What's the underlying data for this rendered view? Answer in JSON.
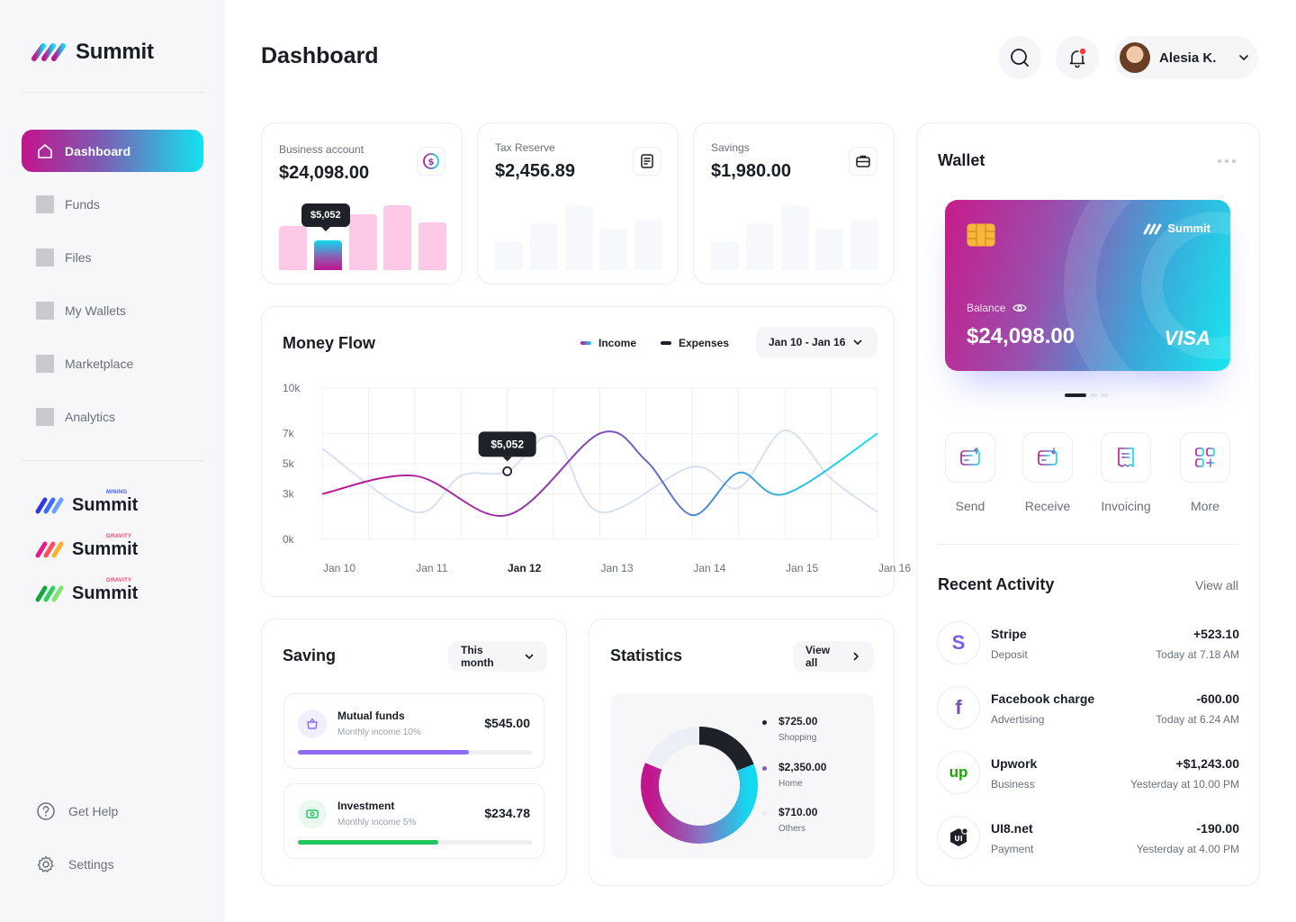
{
  "sidebar": {
    "logo": "Summit",
    "items": [
      {
        "label": "Dashboard"
      },
      {
        "label": "Funds"
      },
      {
        "label": "Files"
      },
      {
        "label": "My Wallets"
      },
      {
        "label": "Marketplace"
      },
      {
        "label": "Analytics"
      }
    ],
    "brands": [
      {
        "name": "Summit",
        "tag": "MINING",
        "tag_color": "#3b5bff"
      },
      {
        "name": "Summit",
        "tag": "GRAVITY",
        "tag_color": "#ff3d6e"
      },
      {
        "name": "Summit",
        "tag": "GRAVITY",
        "tag_color": "#ff3d6e"
      }
    ],
    "help": "Get Help",
    "settings": "Settings"
  },
  "header": {
    "title": "Dashboard",
    "user_name": "Alesia K."
  },
  "accounts": [
    {
      "label": "Business account",
      "value": "$24,098.00",
      "bars": [
        0.68,
        0.46,
        0.86,
        1.0,
        0.74
      ],
      "highlight": 1,
      "tooltip": "$5,052"
    },
    {
      "label": "Tax Reserve",
      "value": "$2,456.89",
      "bars": [
        0.45,
        0.72,
        1.0,
        0.64,
        0.78
      ]
    },
    {
      "label": "Savings",
      "value": "$1,980.00",
      "bars": [
        0.45,
        0.72,
        1.0,
        0.64,
        0.78
      ]
    }
  ],
  "money_flow": {
    "title": "Money Flow",
    "legend_income": "Income",
    "legend_expenses": "Expenses",
    "range": "Jan 10 - Jan 16",
    "tooltip": "$5,052",
    "chart_data": {
      "type": "line",
      "x": [
        "Jan 10",
        "Jan 11",
        "Jan 12",
        "Jan 13",
        "Jan 14",
        "Jan 15",
        "Jan 16"
      ],
      "highlight_x": "Jan 12",
      "y_ticks": [
        "10k",
        "7k",
        "5k",
        "3k",
        "0k"
      ],
      "y_tick_values": [
        10,
        7,
        5,
        3,
        0
      ],
      "series": [
        {
          "name": "Income",
          "points": [
            [
              0,
              3.0
            ],
            [
              1,
              4.2
            ],
            [
              2,
              1.6
            ],
            [
              3,
              7.0
            ],
            [
              3.5,
              5.2
            ],
            [
              4,
              1.6
            ],
            [
              4.5,
              4.4
            ],
            [
              5,
              3.0
            ],
            [
              6,
              7.0
            ]
          ]
        },
        {
          "name": "Expenses",
          "points": [
            [
              0,
              6.0
            ],
            [
              1,
              1.8
            ],
            [
              1.5,
              4.2
            ],
            [
              2,
              4.5
            ],
            [
              2.5,
              6.8
            ],
            [
              3,
              1.8
            ],
            [
              4,
              4.8
            ],
            [
              4.5,
              3.4
            ],
            [
              5,
              7.2
            ],
            [
              5.5,
              4.0
            ],
            [
              6,
              1.8
            ]
          ]
        }
      ],
      "ylim": [
        0,
        10
      ]
    }
  },
  "saving": {
    "title": "Saving",
    "period": "This month",
    "items": [
      {
        "name": "Mutual funds",
        "sub": "Monthly income 10%",
        "amount": "$545.00",
        "progress": 0.73,
        "color": "#8f6cf5",
        "ico_bg": "#f1eefe"
      },
      {
        "name": "Investment",
        "sub": "Monthly income 5%",
        "amount": "$234.78",
        "progress": 0.6,
        "color": "#22c55e",
        "ico_bg": "#e9f9ef"
      }
    ]
  },
  "statistics": {
    "title": "Statistics",
    "view_all": "View all",
    "chart_data": {
      "type": "pie",
      "labels": [
        "Shopping",
        "Home",
        "Others"
      ],
      "values": [
        725,
        2350,
        710
      ],
      "display_values": [
        "$725.00",
        "$2,350.00",
        "$710.00"
      ],
      "colors": [
        "#1e2128",
        "#8b5fb5",
        "#e8ebf3"
      ]
    }
  },
  "wallet": {
    "title": "Wallet",
    "card_brand": "Summit",
    "balance_label": "Balance",
    "balance": "$24,098.00",
    "network": "VISA",
    "actions": [
      {
        "label": "Send"
      },
      {
        "label": "Receive"
      },
      {
        "label": "Invoicing"
      },
      {
        "label": "More"
      }
    ]
  },
  "activity": {
    "title": "Recent Activity",
    "view_all": "View all",
    "items": [
      {
        "name": "Stripe",
        "sub": "Deposit",
        "amount": "+523.10",
        "time": "Today at 7.18 AM"
      },
      {
        "name": "Facebook charge",
        "sub": "Advertising",
        "amount": "-600.00",
        "time": "Today at 6.24 AM"
      },
      {
        "name": "Upwork",
        "sub": "Business",
        "amount": "+$1,243.00",
        "time": "Yesterday at 10.00 PM"
      },
      {
        "name": "UI8.net",
        "sub": "Payment",
        "amount": "-190.00",
        "time": "Yesterday at 4.00 PM"
      }
    ]
  }
}
